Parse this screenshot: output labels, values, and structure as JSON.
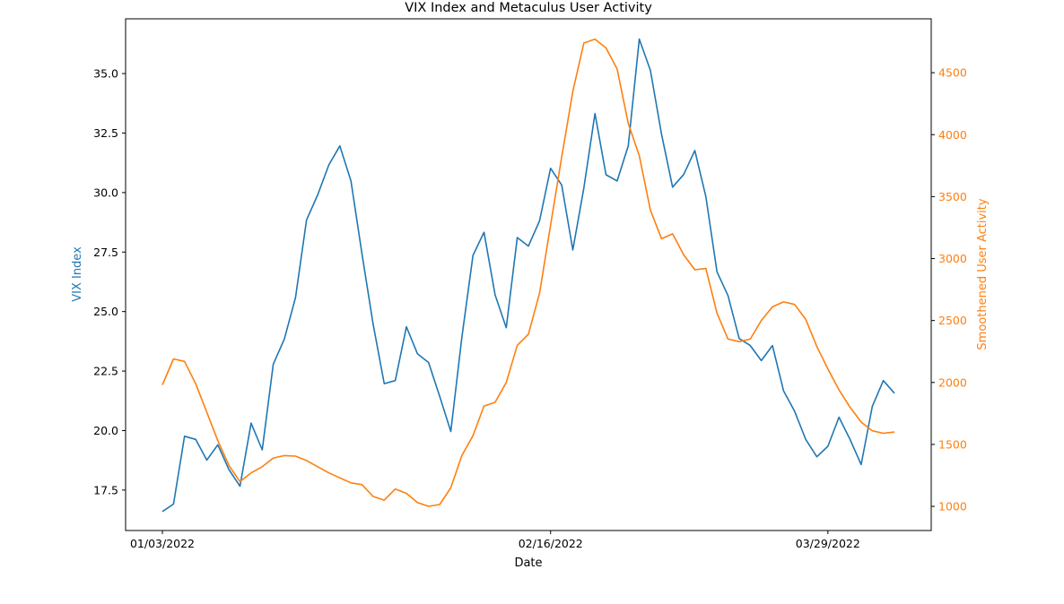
{
  "chart_data": {
    "type": "line",
    "title": "VIX Index and Metaculus User Activity",
    "xlabel": "Date",
    "ylabel_left": "VIX Index",
    "ylabel_right": "Smoothened User Activity",
    "x_tick_labels": [
      "01/03/2022",
      "02/16/2022",
      "03/29/2022"
    ],
    "left_ticks": [
      "17.5",
      "20.0",
      "22.5",
      "25.0",
      "27.5",
      "30.0",
      "32.5",
      "35.0"
    ],
    "right_ticks": [
      "1000",
      "1500",
      "2000",
      "2500",
      "3000",
      "3500",
      "4000",
      "4500"
    ],
    "ylim_left": [
      15.8,
      37.3
    ],
    "ylim_right": [
      805,
      4935
    ],
    "grid": false,
    "colors": {
      "left_series": "#1f77b4",
      "right_series": "#ff7f0e",
      "axis": "#000000"
    },
    "series": [
      {
        "axis": "left",
        "values": [
          16.6,
          16.91,
          19.76,
          19.63,
          18.76,
          19.4,
          18.36,
          17.66,
          20.31,
          19.19,
          22.79,
          23.85,
          25.59,
          28.85,
          29.9,
          31.16,
          31.96,
          30.49,
          27.42,
          24.47,
          21.97,
          22.1,
          24.36,
          23.22,
          22.86,
          21.44,
          19.96,
          23.91,
          27.36,
          28.33,
          25.7,
          24.32,
          28.11,
          27.75,
          28.81,
          31.02,
          30.32,
          27.59,
          30.19,
          33.32,
          30.75,
          30.49,
          31.96,
          36.45,
          35.13,
          32.45,
          30.23,
          30.76,
          31.77,
          29.83,
          26.67,
          25.67,
          23.87,
          23.57,
          22.94,
          23.57,
          21.67,
          20.81,
          19.63,
          18.9,
          19.34,
          20.56,
          19.63,
          18.57,
          21.01,
          22.1,
          21.57
        ]
      },
      {
        "axis": "right",
        "values": [
          1980,
          2190,
          2170,
          1990,
          1760,
          1530,
          1330,
          1200,
          1270,
          1320,
          1390,
          1410,
          1405,
          1370,
          1320,
          1270,
          1230,
          1190,
          1175,
          1080,
          1050,
          1140,
          1105,
          1030,
          1000,
          1015,
          1150,
          1410,
          1570,
          1810,
          1840,
          2000,
          2300,
          2390,
          2720,
          3270,
          3820,
          4350,
          4740,
          4770,
          4700,
          4530,
          4090,
          3830,
          3390,
          3160,
          3200,
          3030,
          2910,
          2920,
          2560,
          2350,
          2330,
          2350,
          2500,
          2610,
          2650,
          2630,
          2510,
          2290,
          2110,
          1940,
          1800,
          1680,
          1610,
          1590,
          1600
        ]
      }
    ]
  }
}
